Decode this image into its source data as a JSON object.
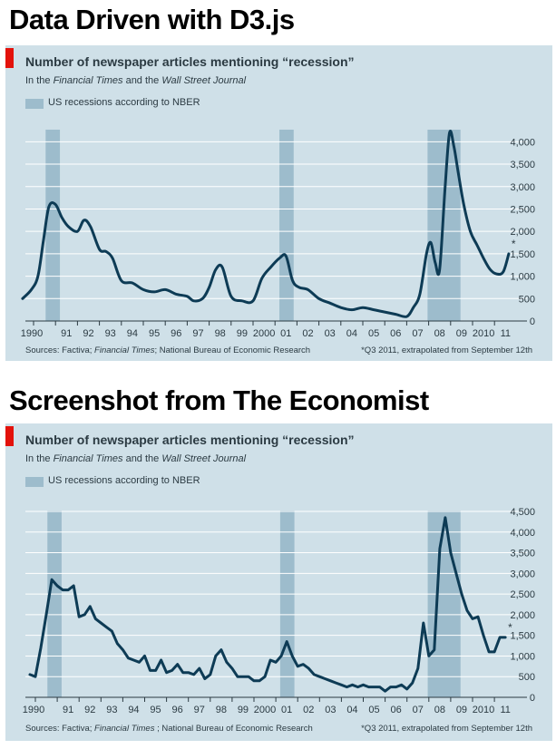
{
  "headings": {
    "top": "Data Driven with D3.js",
    "bottom": "Screenshot from The Economist"
  },
  "chart_data": [
    {
      "type": "line",
      "title": "Number of newspaper articles mentioning “recession”",
      "subtitle_parts": [
        "In the ",
        "Financial Times",
        " and the ",
        "Wall Street Journal"
      ],
      "legend": "US recessions according to NBER",
      "ylim": [
        0,
        4250
      ],
      "yticks": [
        0,
        500,
        1000,
        1500,
        2000,
        2500,
        3000,
        3500,
        4000
      ],
      "ytick_labels": [
        "0",
        "500",
        "1,000",
        "1,500",
        "2,000",
        "2,500",
        "3,000",
        "3,500",
        "4,000"
      ],
      "xticks": [
        {
          "x": 1990.0,
          "label": "1990"
        },
        {
          "x": 1991.0,
          "label": "91"
        },
        {
          "x": 1992.0,
          "label": "92"
        },
        {
          "x": 1993.0,
          "label": "93"
        },
        {
          "x": 1994.0,
          "label": "94"
        },
        {
          "x": 1995.0,
          "label": "95"
        },
        {
          "x": 1996.0,
          "label": "96"
        },
        {
          "x": 1997.0,
          "label": "97"
        },
        {
          "x": 1998.0,
          "label": "98"
        },
        {
          "x": 1999.0,
          "label": "99"
        },
        {
          "x": 2000.0,
          "label": "2000"
        },
        {
          "x": 2001.0,
          "label": "01"
        },
        {
          "x": 2002.0,
          "label": "02"
        },
        {
          "x": 2003.0,
          "label": "03"
        },
        {
          "x": 2004.0,
          "label": "04"
        },
        {
          "x": 2005.0,
          "label": "05"
        },
        {
          "x": 2006.0,
          "label": "06"
        },
        {
          "x": 2007.0,
          "label": "07"
        },
        {
          "x": 2008.0,
          "label": "08"
        },
        {
          "x": 2009.0,
          "label": "09"
        },
        {
          "x": 2010.0,
          "label": "2010"
        },
        {
          "x": 2011.0,
          "label": "11"
        }
      ],
      "recessions": [
        [
          1990.55,
          1991.2
        ],
        [
          2001.2,
          2001.85
        ],
        [
          2007.95,
          2009.45
        ]
      ],
      "smooth": true,
      "series": [
        {
          "x": [
            1989.5,
            1989.9,
            1990.2,
            1990.45,
            1990.7,
            1991.0,
            1991.3,
            1991.6,
            1992.0,
            1992.3,
            1992.6,
            1993.0,
            1993.3,
            1993.6,
            1994.0,
            1994.5,
            1995.0,
            1995.5,
            1996.0,
            1996.5,
            1997.0,
            1997.3,
            1997.7,
            1998.0,
            1998.3,
            1998.6,
            1999.0,
            1999.5,
            2000.0,
            2000.4,
            2000.8,
            2001.2,
            2001.5,
            2001.8,
            2002.1,
            2002.5,
            2003.0,
            2003.5,
            2004.0,
            2004.5,
            2005.0,
            2005.5,
            2006.0,
            2006.5,
            2007.0,
            2007.3,
            2007.6,
            2007.9,
            2008.1,
            2008.3,
            2008.5,
            2008.75,
            2008.95,
            2009.15,
            2009.35,
            2009.6,
            2009.9,
            2010.2,
            2010.5,
            2010.8,
            2011.1,
            2011.4,
            2011.65
          ],
          "y": [
            500,
            700,
            1000,
            1800,
            2550,
            2600,
            2300,
            2100,
            2000,
            2250,
            2100,
            1600,
            1550,
            1400,
            900,
            850,
            700,
            650,
            700,
            600,
            550,
            450,
            500,
            750,
            1150,
            1200,
            550,
            450,
            450,
            950,
            1200,
            1400,
            1450,
            900,
            750,
            700,
            500,
            400,
            300,
            250,
            300,
            250,
            200,
            150,
            100,
            300,
            600,
            1500,
            1750,
            1300,
            1150,
            3000,
            4200,
            3900,
            3300,
            2600,
            2000,
            1700,
            1400,
            1150,
            1050,
            1100,
            1500
          ]
        }
      ],
      "note_marker": "*",
      "sources_parts": [
        "Sources: Factiva; ",
        "Financial Times",
        "; National Bureau of Economic Research"
      ],
      "footnote": "*Q3 2011, extrapolated from September 12th"
    },
    {
      "type": "line",
      "title": "Number of newspaper articles mentioning “recession”",
      "subtitle_parts": [
        "In the ",
        "Financial Times",
        " and the ",
        "Wall Street Journal"
      ],
      "legend": "US recessions according to NBER",
      "ylim": [
        0,
        4500
      ],
      "yticks": [
        0,
        500,
        1000,
        1500,
        2000,
        2500,
        3000,
        3500,
        4000,
        4500
      ],
      "ytick_labels": [
        "0",
        "500",
        "1,000",
        "1,500",
        "2,000",
        "2,500",
        "3,000",
        "3,500",
        "4,000",
        "4,500"
      ],
      "xticks": [
        {
          "x": 1990.0,
          "label": "1990"
        },
        {
          "x": 1991.0,
          "label": "91"
        },
        {
          "x": 1992.0,
          "label": "92"
        },
        {
          "x": 1993.0,
          "label": "93"
        },
        {
          "x": 1994.0,
          "label": "94"
        },
        {
          "x": 1995.0,
          "label": "95"
        },
        {
          "x": 1996.0,
          "label": "96"
        },
        {
          "x": 1997.0,
          "label": "97"
        },
        {
          "x": 1998.0,
          "label": "98"
        },
        {
          "x": 1999.0,
          "label": "99"
        },
        {
          "x": 2000.0,
          "label": "2000"
        },
        {
          "x": 2001.0,
          "label": "01"
        },
        {
          "x": 2002.0,
          "label": "02"
        },
        {
          "x": 2003.0,
          "label": "03"
        },
        {
          "x": 2004.0,
          "label": "04"
        },
        {
          "x": 2005.0,
          "label": "05"
        },
        {
          "x": 2006.0,
          "label": "06"
        },
        {
          "x": 2007.0,
          "label": "07"
        },
        {
          "x": 2008.0,
          "label": "08"
        },
        {
          "x": 2009.0,
          "label": "09"
        },
        {
          "x": 2010.0,
          "label": "2010"
        },
        {
          "x": 2011.0,
          "label": "11"
        }
      ],
      "recessions": [
        [
          1990.55,
          1991.2
        ],
        [
          2001.2,
          2001.85
        ],
        [
          2007.95,
          2009.45
        ]
      ],
      "smooth": false,
      "series": [
        {
          "x": [
            1989.75,
            1990.0,
            1990.25,
            1990.5,
            1990.75,
            1991.0,
            1991.25,
            1991.5,
            1991.75,
            1992.0,
            1992.25,
            1992.5,
            1992.75,
            1993.0,
            1993.25,
            1993.5,
            1993.75,
            1994.0,
            1994.25,
            1994.5,
            1994.75,
            1995.0,
            1995.25,
            1995.5,
            1995.75,
            1996.0,
            1996.25,
            1996.5,
            1996.75,
            1997.0,
            1997.25,
            1997.5,
            1997.75,
            1998.0,
            1998.25,
            1998.5,
            1998.75,
            1999.0,
            1999.25,
            1999.5,
            1999.75,
            2000.0,
            2000.25,
            2000.5,
            2000.75,
            2001.0,
            2001.25,
            2001.5,
            2001.75,
            2002.0,
            2002.25,
            2002.5,
            2002.75,
            2003.0,
            2003.25,
            2003.5,
            2003.75,
            2004.0,
            2004.25,
            2004.5,
            2004.75,
            2005.0,
            2005.25,
            2005.5,
            2005.75,
            2006.0,
            2006.25,
            2006.5,
            2006.75,
            2007.0,
            2007.25,
            2007.5,
            2007.75,
            2008.0,
            2008.25,
            2008.5,
            2008.75,
            2009.0,
            2009.25,
            2009.5,
            2009.75,
            2010.0,
            2010.25,
            2010.5,
            2010.75,
            2011.0,
            2011.25,
            2011.5
          ],
          "y": [
            550,
            500,
            1200,
            2000,
            2850,
            2700,
            2600,
            2600,
            2700,
            1950,
            2000,
            2200,
            1900,
            1800,
            1700,
            1600,
            1300,
            1150,
            950,
            900,
            850,
            1000,
            650,
            650,
            900,
            600,
            650,
            800,
            600,
            600,
            550,
            700,
            450,
            550,
            1000,
            1150,
            850,
            700,
            500,
            500,
            500,
            400,
            400,
            500,
            900,
            850,
            1000,
            1350,
            1000,
            750,
            800,
            700,
            550,
            500,
            450,
            400,
            350,
            300,
            250,
            300,
            250,
            300,
            250,
            250,
            250,
            150,
            250,
            250,
            300,
            200,
            350,
            700,
            1800,
            1000,
            1150,
            3600,
            4350,
            3500,
            3000,
            2500,
            2100,
            1900,
            1950,
            1500,
            1100,
            1100,
            1450,
            1450
          ]
        }
      ],
      "note_marker": "*",
      "sources_parts": [
        "Sources: Factiva; ",
        "Financial Times",
        " ; National Bureau of Economic Research"
      ],
      "footnote": "*Q3 2011, extrapolated from September 12th"
    }
  ],
  "colors": {
    "panel_bg": "#cfe0e8",
    "recession_band": "#9dbccc",
    "line": "#0d3b55",
    "gridline": "#ffffff",
    "accent_red": "#e3120b",
    "text": "#2b3a42"
  }
}
